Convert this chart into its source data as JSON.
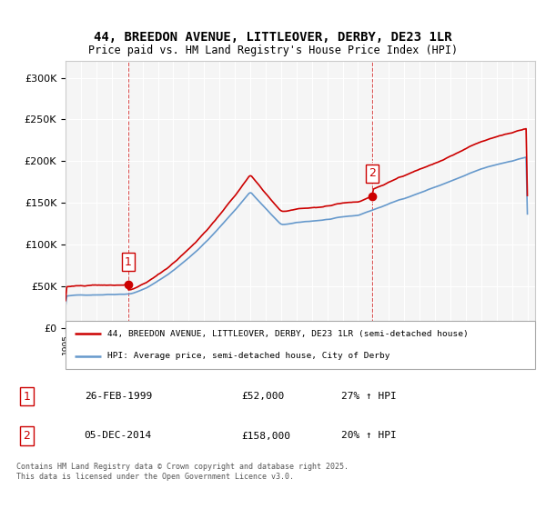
{
  "title_line1": "44, BREEDON AVENUE, LITTLEOVER, DERBY, DE23 1LR",
  "title_line2": "Price paid vs. HM Land Registry's House Price Index (HPI)",
  "legend_house": "44, BREEDON AVENUE, LITTLEOVER, DERBY, DE23 1LR (semi-detached house)",
  "legend_hpi": "HPI: Average price, semi-detached house, City of Derby",
  "sale1_date": "26-FEB-1999",
  "sale1_price": "£52,000",
  "sale1_hpi": "27% ↑ HPI",
  "sale2_date": "05-DEC-2014",
  "sale2_price": "£158,000",
  "sale2_hpi": "20% ↑ HPI",
  "copyright_text": "Contains HM Land Registry data © Crown copyright and database right 2025.\nThis data is licensed under the Open Government Licence v3.0.",
  "house_color": "#cc0000",
  "hpi_color": "#6699cc",
  "sale_marker_color": "#cc0000",
  "dashed_line_color": "#cc0000",
  "ylim_min": 0,
  "ylim_max": 320000,
  "background_color": "#ffffff",
  "plot_bg_color": "#f5f5f5"
}
